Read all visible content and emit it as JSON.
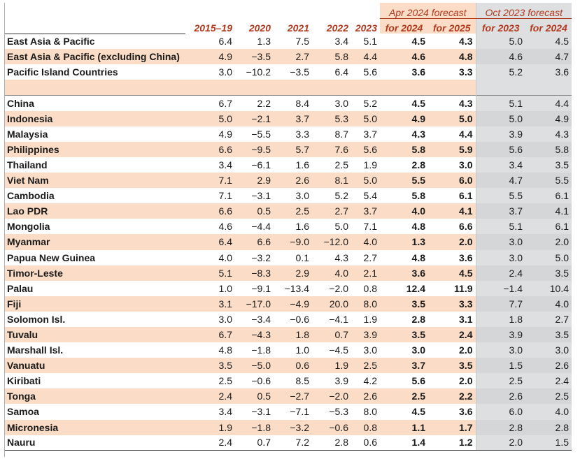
{
  "headers": {
    "group_apr": "Apr 2024 forecast",
    "group_oct": "Oct 2023 forecast",
    "columns": [
      "2015–19",
      "2020",
      "2021",
      "2022",
      "2023",
      "for 2024",
      "for 2025",
      "for 2023",
      "for 2024"
    ]
  },
  "colors": {
    "accent": "#b23a1e",
    "shade": "#fbdcc6",
    "gray": "#dddfe1"
  },
  "regions": [
    {
      "name": "East Asia & Pacific",
      "values": [
        "6.4",
        "1.3",
        "7.5",
        "3.4",
        "5.1",
        "4.5",
        "4.3",
        "5.0",
        "4.5"
      ]
    },
    {
      "name": "East Asia & Pacific (excluding China)",
      "values": [
        "4.9",
        "−3.5",
        "2.7",
        "5.8",
        "4.4",
        "4.6",
        "4.8",
        "4.6",
        "4.7"
      ]
    },
    {
      "name": "Pacific Island Countries",
      "values": [
        "3.0",
        "−10.2",
        "−3.5",
        "6.4",
        "5.6",
        "3.6",
        "3.3",
        "5.2",
        "3.6"
      ]
    }
  ],
  "countries": [
    {
      "name": "China",
      "values": [
        "6.7",
        "2.2",
        "8.4",
        "3.0",
        "5.2",
        "4.5",
        "4.3",
        "5.1",
        "4.4"
      ]
    },
    {
      "name": "Indonesia",
      "values": [
        "5.0",
        "−2.1",
        "3.7",
        "5.3",
        "5.0",
        "4.9",
        "5.0",
        "5.0",
        "4.9"
      ]
    },
    {
      "name": "Malaysia",
      "values": [
        "4.9",
        "−5.5",
        "3.3",
        "8.7",
        "3.7",
        "4.3",
        "4.4",
        "3.9",
        "4.3"
      ]
    },
    {
      "name": "Philippines",
      "values": [
        "6.6",
        "−9.5",
        "5.7",
        "7.6",
        "5.6",
        "5.8",
        "5.9",
        "5.6",
        "5.8"
      ]
    },
    {
      "name": "Thailand",
      "values": [
        "3.4",
        "−6.1",
        "1.6",
        "2.5",
        "1.9",
        "2.8",
        "3.0",
        "3.4",
        "3.5"
      ]
    },
    {
      "name": "Viet Nam",
      "values": [
        "7.1",
        "2.9",
        "2.6",
        "8.1",
        "5.0",
        "5.5",
        "6.0",
        "4.7",
        "5.5"
      ]
    },
    {
      "name": "Cambodia",
      "values": [
        "7.1",
        "−3.1",
        "3.0",
        "5.2",
        "5.4",
        "5.8",
        "6.1",
        "5.5",
        "6.1"
      ]
    },
    {
      "name": "Lao PDR",
      "values": [
        "6.6",
        "0.5",
        "2.5",
        "2.7",
        "3.7",
        "4.0",
        "4.1",
        "3.7",
        "4.1"
      ]
    },
    {
      "name": "Mongolia",
      "values": [
        "4.6",
        "−4.4",
        "1.6",
        "5.0",
        "7.1",
        "4.8",
        "6.6",
        "5.1",
        "6.1"
      ]
    },
    {
      "name": "Myanmar",
      "values": [
        "6.4",
        "6.6",
        "−9.0",
        "−12.0",
        "4.0",
        "1.3",
        "2.0",
        "3.0",
        "2.0"
      ]
    },
    {
      "name": "Papua New Guinea",
      "values": [
        "4.0",
        "−3.2",
        "0.1",
        "4.3",
        "2.7",
        "4.8",
        "3.6",
        "3.0",
        "5.0"
      ]
    },
    {
      "name": "Timor-Leste",
      "values": [
        "5.1",
        "−8.3",
        "2.9",
        "4.0",
        "2.1",
        "3.6",
        "4.5",
        "2.4",
        "3.5"
      ]
    },
    {
      "name": "Palau",
      "values": [
        "1.0",
        "−9.1",
        "−13.4",
        "−2.0",
        "0.8",
        "12.4",
        "11.9",
        "−1.4",
        "10.4"
      ]
    },
    {
      "name": "Fiji",
      "values": [
        "3.1",
        "−17.0",
        "−4.9",
        "20.0",
        "8.0",
        "3.5",
        "3.3",
        "7.7",
        "4.0"
      ]
    },
    {
      "name": "Solomon Isl.",
      "values": [
        "3.0",
        "−3.4",
        "−0.6",
        "−4.1",
        "1.9",
        "2.8",
        "3.1",
        "1.8",
        "2.7"
      ]
    },
    {
      "name": "Tuvalu",
      "values": [
        "6.7",
        "−4.3",
        "1.8",
        "0.7",
        "3.9",
        "3.5",
        "2.4",
        "3.9",
        "3.5"
      ]
    },
    {
      "name": "Marshall Isl.",
      "values": [
        "4.8",
        "−1.8",
        "1.0",
        "−4.5",
        "3.0",
        "3.0",
        "2.0",
        "3.0",
        "3.0"
      ]
    },
    {
      "name": "Vanuatu",
      "values": [
        "3.5",
        "−5.0",
        "0.6",
        "1.9",
        "2.5",
        "3.7",
        "3.5",
        "1.5",
        "2.6"
      ]
    },
    {
      "name": "Kiribati",
      "values": [
        "2.5",
        "−0.6",
        "8.5",
        "3.9",
        "4.2",
        "5.6",
        "2.0",
        "2.5",
        "2.4"
      ]
    },
    {
      "name": "Tonga",
      "values": [
        "2.4",
        "0.5",
        "−2.7",
        "−2.0",
        "2.6",
        "2.5",
        "2.2",
        "2.6",
        "2.5"
      ]
    },
    {
      "name": "Samoa",
      "values": [
        "3.4",
        "−3.1",
        "−7.1",
        "−5.3",
        "8.0",
        "4.5",
        "3.6",
        "6.0",
        "4.0"
      ]
    },
    {
      "name": "Micronesia",
      "values": [
        "1.9",
        "−1.8",
        "−3.2",
        "−0.6",
        "0.8",
        "1.1",
        "1.7",
        "2.8",
        "2.8"
      ]
    },
    {
      "name": "Nauru",
      "values": [
        "2.4",
        "0.7",
        "7.2",
        "2.8",
        "0.6",
        "1.4",
        "1.2",
        "2.0",
        "1.5"
      ]
    }
  ]
}
